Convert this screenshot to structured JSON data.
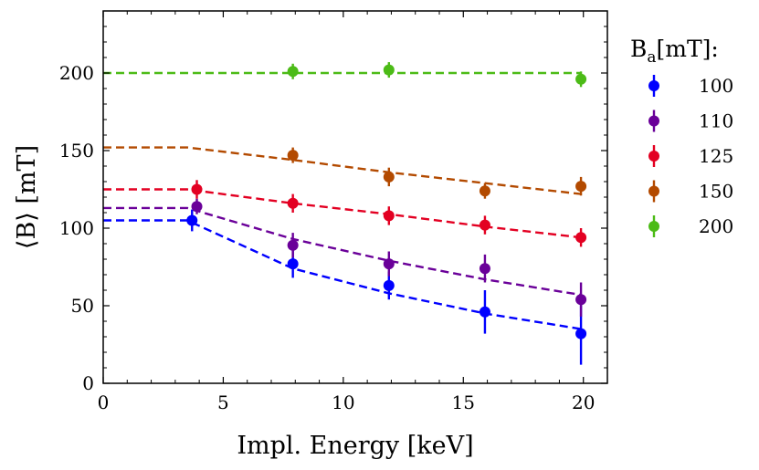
{
  "chart_data": {
    "type": "scatter",
    "title": "",
    "xlabel": "Impl. Energy [keV]",
    "ylabel_prefix": "⟨B⟩",
    "ylabel_unit": "[mT]",
    "xlim": [
      0,
      21
    ],
    "ylim": [
      0,
      240
    ],
    "xticks": [
      0,
      5,
      10,
      15,
      20
    ],
    "xtick_labels": [
      "0",
      "5",
      "10",
      "15",
      "20"
    ],
    "yticks": [
      0,
      50,
      100,
      150,
      200
    ],
    "ytick_labels": [
      "0",
      "50",
      "100",
      "150",
      "200"
    ],
    "grid": false,
    "legend": {
      "placement": "outside-right",
      "title_base": "B",
      "title_sub": "a",
      "title_rest": "[mT]:"
    },
    "series": [
      {
        "name": "100",
        "color": "#0000ff",
        "x": [
          3.7,
          7.9,
          11.9,
          15.9,
          19.9
        ],
        "y": [
          105,
          77,
          63,
          46,
          32
        ],
        "yerr": [
          7,
          9,
          9,
          14,
          20
        ],
        "model_x": [
          0,
          3.5,
          7.9,
          11.9,
          15.9,
          19.9
        ],
        "model_y": [
          105,
          105,
          74,
          58,
          45,
          35
        ]
      },
      {
        "name": "110",
        "color": "#6a0099",
        "x": [
          3.9,
          7.9,
          11.9,
          15.9,
          19.9
        ],
        "y": [
          114,
          89,
          77,
          74,
          54
        ],
        "yerr": [
          5,
          8,
          8,
          9,
          11
        ],
        "model_x": [
          0,
          3.5,
          7.9,
          11.9,
          15.9,
          19.9
        ],
        "model_y": [
          113,
          113,
          93,
          79,
          67,
          57
        ]
      },
      {
        "name": "125",
        "color": "#e30022",
        "x": [
          3.9,
          7.9,
          11.9,
          15.9,
          19.9
        ],
        "y": [
          125,
          116,
          108,
          102,
          94
        ],
        "yerr": [
          6,
          6,
          6,
          6,
          6
        ],
        "model_x": [
          0,
          3.5,
          7.9,
          11.9,
          15.9,
          19.9
        ],
        "model_y": [
          125,
          125,
          116,
          109,
          101,
          94
        ]
      },
      {
        "name": "150",
        "color": "#b34a00",
        "x": [
          7.9,
          11.9,
          15.9,
          19.9
        ],
        "y": [
          147,
          133,
          124,
          127
        ],
        "yerr": [
          5,
          6,
          5,
          6
        ],
        "model_x": [
          0,
          3.5,
          7.9,
          11.9,
          15.9,
          19.9
        ],
        "model_y": [
          152,
          152,
          144,
          136,
          129,
          122
        ]
      },
      {
        "name": "200",
        "color": "#4cbb17",
        "x": [
          7.9,
          11.9,
          19.9
        ],
        "y": [
          201,
          202,
          196
        ],
        "yerr": [
          5,
          5,
          5
        ],
        "model_x": [
          0,
          19.9
        ],
        "model_y": [
          200,
          200
        ]
      }
    ]
  }
}
